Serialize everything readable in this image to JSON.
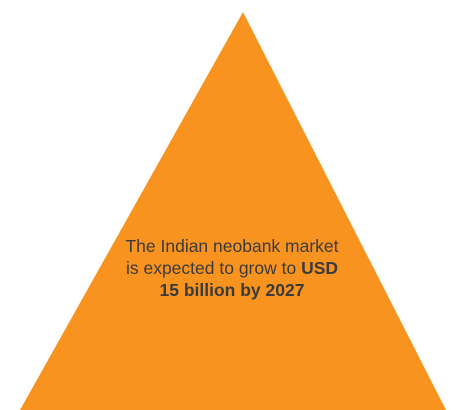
{
  "shape": {
    "name": "triangle",
    "fill_color": "#F7931E"
  },
  "message": {
    "lead_text": "The Indian neobank market is expected to grow to ",
    "highlight_text": "USD 15 billion by 2027",
    "text_color": "#3b3b3b"
  }
}
